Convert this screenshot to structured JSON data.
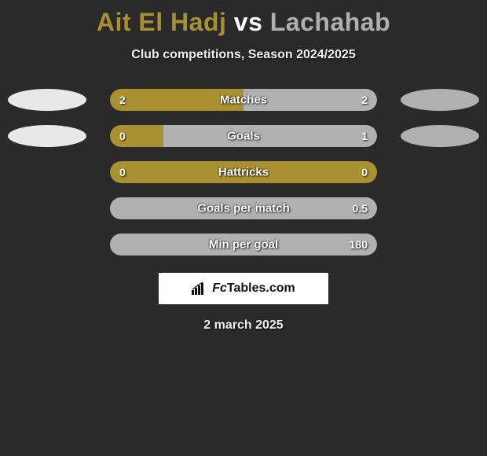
{
  "title": {
    "player1": "Ait El Hadj",
    "vs": "vs",
    "player2": "Lachahab",
    "color_player1": "#a99031",
    "color_vs": "#ffffff",
    "color_player2": "#b0b0b0",
    "fontsize": 32
  },
  "subtitle": "Club competitions, Season 2024/2025",
  "date": "2 march 2025",
  "colors": {
    "background": "#2a2a2a",
    "bar_track": "#4a4a4a",
    "bar_fill_left": "#a99031",
    "bar_fill_right": "#b0b0b0",
    "text": "#ffffff",
    "brand_bg": "#ffffff",
    "brand_text": "#111111",
    "ellipse_left_row0": "#e8e8e8",
    "ellipse_right_row0": "#b0b0b0",
    "ellipse_left_row1": "#e8e8e8",
    "ellipse_right_row1": "#b0b0b0"
  },
  "bar": {
    "track_width": 340,
    "track_height": 28,
    "border_radius": 14,
    "label_fontsize": 15,
    "value_fontsize": 14
  },
  "rows": [
    {
      "label": "Matches",
      "left_val": "2",
      "right_val": "2",
      "left_pct": 50,
      "right_pct": 50,
      "show_ellipses": true
    },
    {
      "label": "Goals",
      "left_val": "0",
      "right_val": "1",
      "left_pct": 20,
      "right_pct": 80,
      "show_ellipses": true
    },
    {
      "label": "Hattricks",
      "left_val": "0",
      "right_val": "0",
      "left_pct": 100,
      "right_pct": 0,
      "show_ellipses": false
    },
    {
      "label": "Goals per match",
      "left_val": "",
      "right_val": "0.5",
      "left_pct": 0,
      "right_pct": 100,
      "show_ellipses": false
    },
    {
      "label": "Min per goal",
      "left_val": "",
      "right_val": "180",
      "left_pct": 0,
      "right_pct": 100,
      "show_ellipses": false
    }
  ],
  "brand": {
    "text": "FcTables.com",
    "icon": "chart-bars-icon"
  }
}
